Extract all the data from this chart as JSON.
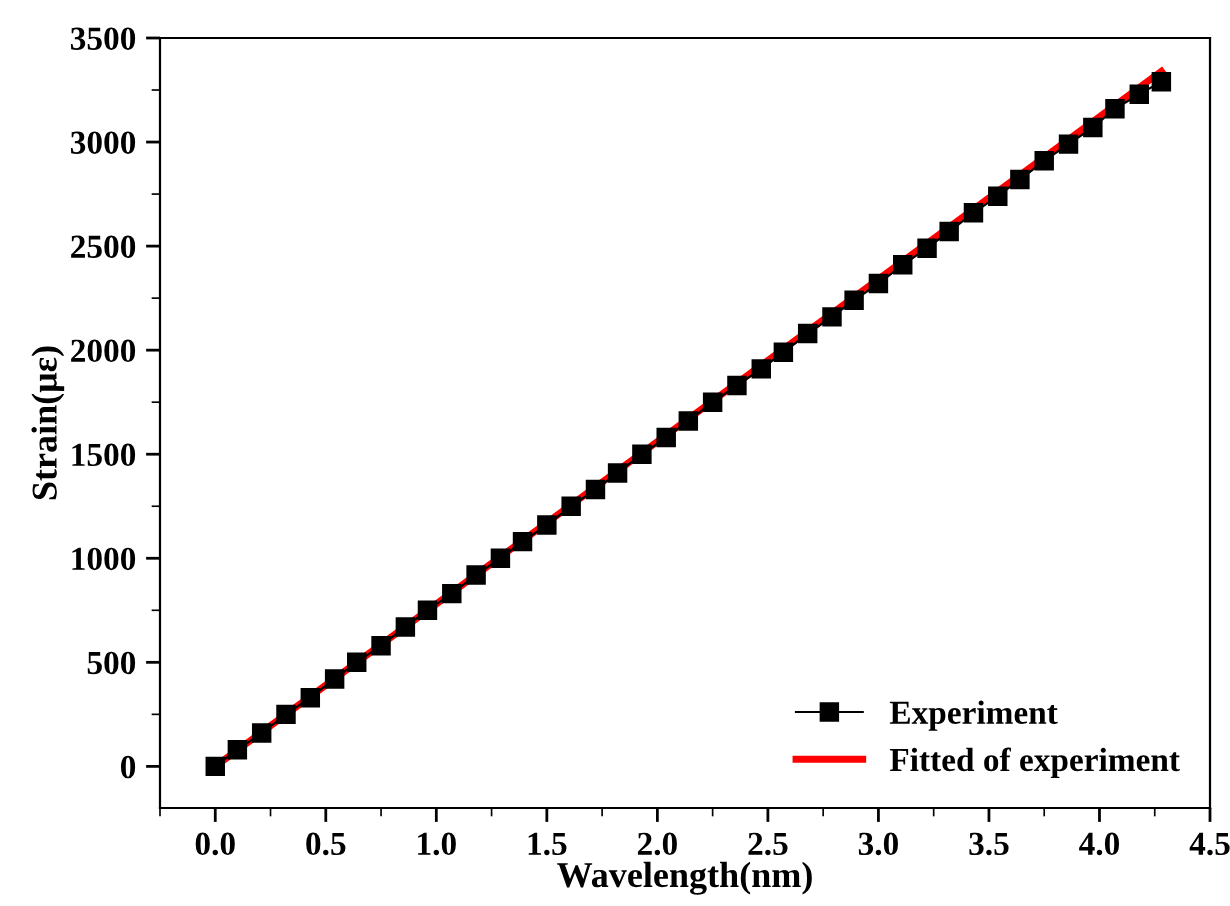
{
  "chart_data": {
    "type": "line",
    "xlabel": "Wavelength(nm)",
    "ylabel": "Strain(με)",
    "xlim": [
      -0.25,
      4.5
    ],
    "ylim": [
      -200,
      3500
    ],
    "xticks": [
      {
        "value": 0,
        "label": "0.0"
      },
      {
        "value": 0.5,
        "label": "0.5"
      },
      {
        "value": 1,
        "label": "1.0"
      },
      {
        "value": 1.5,
        "label": "1.5"
      },
      {
        "value": 2,
        "label": "2.0"
      },
      {
        "value": 2.5,
        "label": "2.5"
      },
      {
        "value": 3,
        "label": "3.0"
      },
      {
        "value": 3.5,
        "label": "3.5"
      },
      {
        "value": 4,
        "label": "4.0"
      },
      {
        "value": 4.5,
        "label": "4.5"
      }
    ],
    "yticks": [
      0,
      500,
      1000,
      1500,
      2000,
      2500,
      3000,
      3500
    ],
    "grid": false,
    "legend": "bottom right",
    "series": [
      {
        "name": "Experiment",
        "color": "#000000",
        "marker": "square",
        "line_style": "solid",
        "x": [
          0.0,
          0.1,
          0.21,
          0.32,
          0.43,
          0.54,
          0.64,
          0.75,
          0.86,
          0.96,
          1.07,
          1.18,
          1.29,
          1.39,
          1.5,
          1.61,
          1.72,
          1.82,
          1.93,
          2.04,
          2.14,
          2.25,
          2.36,
          2.47,
          2.57,
          2.68,
          2.79,
          2.89,
          3.0,
          3.11,
          3.22,
          3.32,
          3.43,
          3.54,
          3.64,
          3.75,
          3.86,
          3.97,
          4.07,
          4.18,
          4.28
        ],
        "values": [
          0,
          80,
          160,
          250,
          330,
          420,
          500,
          580,
          670,
          750,
          830,
          920,
          1000,
          1080,
          1160,
          1250,
          1330,
          1410,
          1500,
          1580,
          1660,
          1750,
          1830,
          1910,
          1990,
          2080,
          2160,
          2240,
          2320,
          2410,
          2490,
          2570,
          2660,
          2740,
          2820,
          2910,
          2990,
          3070,
          3160,
          3230,
          3290
        ]
      },
      {
        "name": "Fitted of experiment",
        "color": "#ff0000",
        "line_style": "solid",
        "x": [
          0,
          4.28
        ],
        "values": [
          0,
          3340
        ]
      }
    ]
  }
}
